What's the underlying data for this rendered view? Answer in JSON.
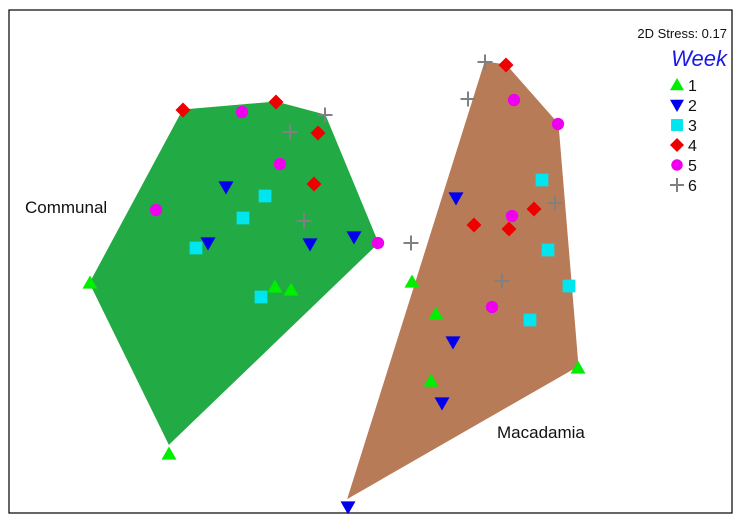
{
  "chart_data": {
    "type": "scatter",
    "title": "",
    "xlabel": "",
    "ylabel": "",
    "xlim": [
      0,
      733
    ],
    "ylim": [
      0,
      514
    ],
    "grid": false,
    "stress_label": "2D Stress: 0.17",
    "legend": {
      "title": "Week",
      "placement": "top-right",
      "entries": [
        {
          "label": "1",
          "marker": "triangle-up",
          "color": "#00ee00"
        },
        {
          "label": "2",
          "marker": "triangle-down",
          "color": "#0000ee"
        },
        {
          "label": "3",
          "marker": "square",
          "color": "#00e5ee"
        },
        {
          "label": "4",
          "marker": "diamond",
          "color": "#ee0000"
        },
        {
          "label": "5",
          "marker": "circle",
          "color": "#ee00ee"
        },
        {
          "label": "6",
          "marker": "plus",
          "color": "#808080"
        }
      ]
    },
    "groups": [
      {
        "label": "Communal",
        "fill": "#22aa44",
        "hull": [
          [
            90,
            283
          ],
          [
            183,
            110
          ],
          [
            276,
            102
          ],
          [
            325,
            115
          ],
          [
            378,
            243
          ],
          [
            169,
            444
          ]
        ]
      },
      {
        "label": "Macadamia",
        "fill": "#b87b58",
        "hull": [
          [
            485,
            62
          ],
          [
            506,
            65
          ],
          [
            558,
            124
          ],
          [
            578,
            366
          ],
          [
            348,
            498
          ]
        ]
      }
    ],
    "series": [
      {
        "name": "1",
        "marker": "triangle-up",
        "color": "#00ee00",
        "points": [
          [
            90,
            283
          ],
          [
            169,
            454
          ],
          [
            275,
            287
          ],
          [
            291,
            290
          ],
          [
            412,
            282
          ],
          [
            436,
            314
          ],
          [
            431,
            381
          ],
          [
            578,
            368
          ]
        ]
      },
      {
        "name": "2",
        "marker": "triangle-down",
        "color": "#0000ee",
        "points": [
          [
            226,
            187
          ],
          [
            208,
            243
          ],
          [
            310,
            244
          ],
          [
            354,
            237
          ],
          [
            456,
            198
          ],
          [
            453,
            342
          ],
          [
            442,
            403
          ],
          [
            348,
            507
          ]
        ]
      },
      {
        "name": "3",
        "marker": "square",
        "color": "#00e5ee",
        "points": [
          [
            265,
            196
          ],
          [
            243,
            218
          ],
          [
            196,
            248
          ],
          [
            261,
            297
          ],
          [
            542,
            180
          ],
          [
            548,
            250
          ],
          [
            569,
            286
          ],
          [
            530,
            320
          ]
        ]
      },
      {
        "name": "4",
        "marker": "diamond",
        "color": "#ee0000",
        "points": [
          [
            183,
            110
          ],
          [
            276,
            102
          ],
          [
            318,
            133
          ],
          [
            314,
            184
          ],
          [
            506,
            65
          ],
          [
            474,
            225
          ],
          [
            509,
            229
          ],
          [
            534,
            209
          ]
        ]
      },
      {
        "name": "5",
        "marker": "circle",
        "color": "#ee00ee",
        "points": [
          [
            242,
            112
          ],
          [
            280,
            164
          ],
          [
            156,
            210
          ],
          [
            378,
            243
          ],
          [
            514,
            100
          ],
          [
            558,
            124
          ],
          [
            512,
            216
          ],
          [
            492,
            307
          ]
        ]
      },
      {
        "name": "6",
        "marker": "plus",
        "color": "#808080",
        "points": [
          [
            290,
            132
          ],
          [
            325,
            115
          ],
          [
            304,
            221
          ],
          [
            485,
            62
          ],
          [
            468,
            99
          ],
          [
            555,
            203
          ],
          [
            411,
            243
          ],
          [
            502,
            281
          ]
        ]
      }
    ]
  }
}
